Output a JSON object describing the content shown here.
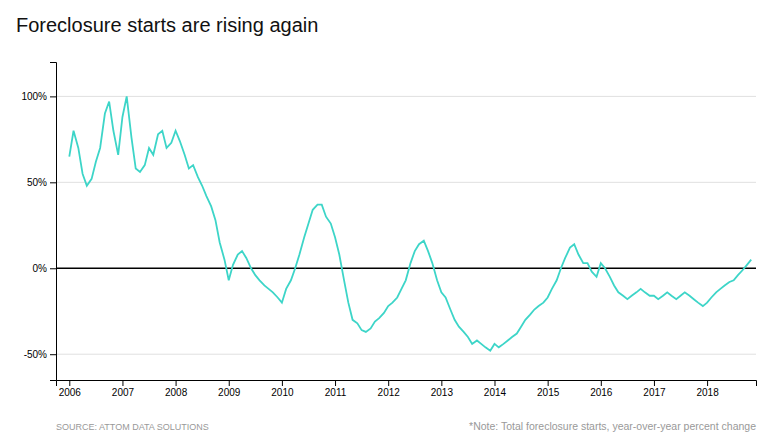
{
  "chart_data": {
    "type": "line",
    "title": "Foreclosure starts are rising again",
    "annotations": [
      "SOURCE: ATTOM DATA SOLUTIONS",
      "*Note: Total foreclosure starts, year-over-year percent change"
    ],
    "color": "#3DD5C8",
    "grid": true,
    "xlim": [
      2005.75,
      2018.92
    ],
    "xticks": [
      2006,
      2007,
      2008,
      2009,
      2010,
      2011,
      2012,
      2013,
      2014,
      2015,
      2016,
      2017,
      2018
    ],
    "ylim": [
      -65,
      120
    ],
    "yticks": [
      {
        "value": -50,
        "label": "-50%"
      },
      {
        "value": 0,
        "label": "0%"
      },
      {
        "value": 50,
        "label": "50%"
      },
      {
        "value": 100,
        "label": "100%"
      }
    ],
    "x": [
      2006.0,
      2006.08,
      2006.17,
      2006.25,
      2006.33,
      2006.42,
      2006.5,
      2006.58,
      2006.67,
      2006.75,
      2006.83,
      2006.92,
      2007.0,
      2007.08,
      2007.17,
      2007.25,
      2007.33,
      2007.42,
      2007.5,
      2007.58,
      2007.67,
      2007.75,
      2007.83,
      2007.92,
      2008.0,
      2008.08,
      2008.17,
      2008.25,
      2008.33,
      2008.42,
      2008.5,
      2008.58,
      2008.67,
      2008.75,
      2008.83,
      2008.92,
      2009.0,
      2009.08,
      2009.17,
      2009.25,
      2009.33,
      2009.42,
      2009.5,
      2009.58,
      2009.67,
      2009.75,
      2009.83,
      2009.92,
      2010.0,
      2010.08,
      2010.17,
      2010.25,
      2010.33,
      2010.42,
      2010.5,
      2010.58,
      2010.67,
      2010.75,
      2010.83,
      2010.92,
      2011.0,
      2011.08,
      2011.17,
      2011.25,
      2011.33,
      2011.42,
      2011.5,
      2011.58,
      2011.67,
      2011.75,
      2011.83,
      2011.92,
      2012.0,
      2012.08,
      2012.17,
      2012.25,
      2012.33,
      2012.42,
      2012.5,
      2012.58,
      2012.67,
      2012.75,
      2012.83,
      2012.92,
      2013.0,
      2013.08,
      2013.17,
      2013.25,
      2013.33,
      2013.42,
      2013.5,
      2013.58,
      2013.67,
      2013.75,
      2013.83,
      2013.92,
      2014.0,
      2014.08,
      2014.17,
      2014.25,
      2014.33,
      2014.42,
      2014.5,
      2014.58,
      2014.67,
      2014.75,
      2014.83,
      2014.92,
      2015.0,
      2015.08,
      2015.17,
      2015.25,
      2015.33,
      2015.42,
      2015.5,
      2015.58,
      2015.67,
      2015.75,
      2015.83,
      2015.92,
      2016.0,
      2016.08,
      2016.17,
      2016.25,
      2016.33,
      2016.42,
      2016.5,
      2016.58,
      2016.67,
      2016.75,
      2016.83,
      2016.92,
      2017.0,
      2017.08,
      2017.17,
      2017.25,
      2017.33,
      2017.42,
      2017.5,
      2017.58,
      2017.67,
      2017.75,
      2017.83,
      2017.92,
      2018.0,
      2018.08,
      2018.17,
      2018.25,
      2018.33,
      2018.42,
      2018.5,
      2018.58,
      2018.67,
      2018.75,
      2018.83
    ],
    "values": [
      65,
      80,
      70,
      55,
      48,
      52,
      62,
      70,
      90,
      97,
      80,
      66,
      88,
      100,
      76,
      58,
      56,
      60,
      70,
      66,
      78,
      80,
      70,
      73,
      80,
      74,
      66,
      58,
      60,
      53,
      48,
      42,
      36,
      28,
      15,
      5,
      -7,
      2,
      8,
      10,
      6,
      0,
      -4,
      -7,
      -10,
      -12,
      -14,
      -17,
      -20,
      -12,
      -7,
      0,
      8,
      18,
      26,
      34,
      37,
      37,
      30,
      26,
      18,
      8,
      -7,
      -20,
      -30,
      -32,
      -36,
      -37,
      -35,
      -31,
      -29,
      -26,
      -22,
      -20,
      -17,
      -12,
      -7,
      3,
      10,
      14,
      16,
      10,
      3,
      -7,
      -14,
      -17,
      -24,
      -30,
      -34,
      -37,
      -40,
      -44,
      -42,
      -44,
      -46,
      -48,
      -44,
      -46,
      -44,
      -42,
      -40,
      -38,
      -34,
      -30,
      -27,
      -24,
      -22,
      -20,
      -17,
      -12,
      -7,
      0,
      6,
      12,
      14,
      8,
      3,
      3,
      -2,
      -5,
      3,
      0,
      -5,
      -10,
      -14,
      -16,
      -18,
      -16,
      -14,
      -12,
      -14,
      -16,
      -16,
      -18,
      -16,
      -14,
      -16,
      -18,
      -16,
      -14,
      -16,
      -18,
      -20,
      -22,
      -20,
      -17,
      -14,
      -12,
      -10,
      -8,
      -7,
      -4,
      -1,
      2,
      5
    ]
  }
}
